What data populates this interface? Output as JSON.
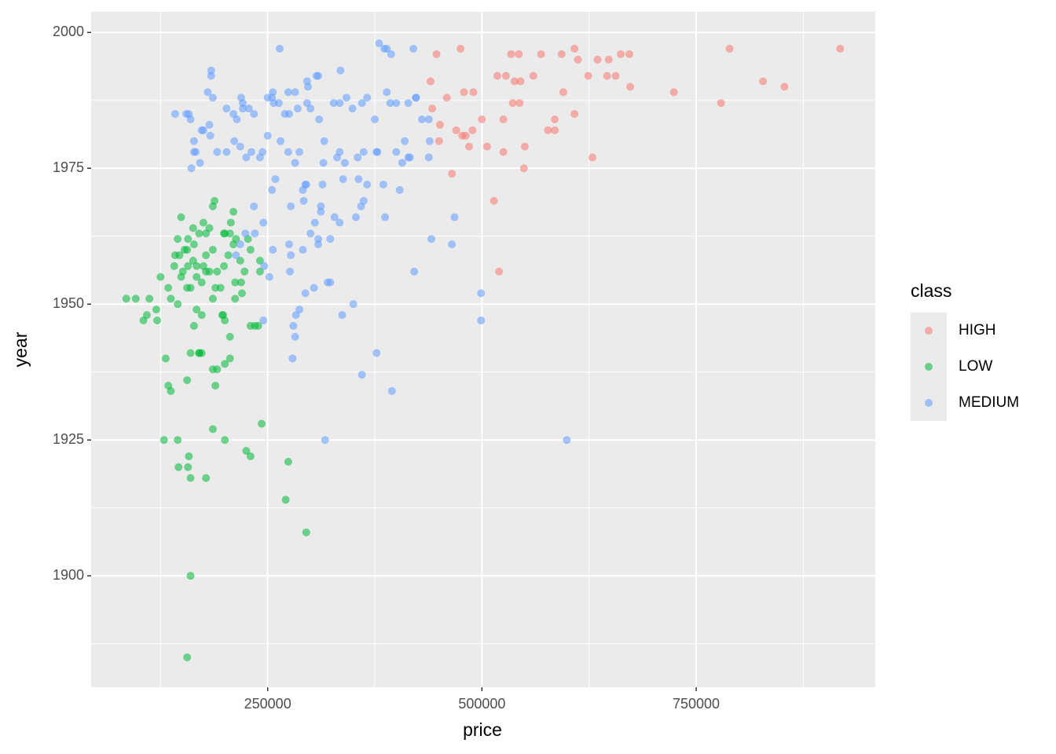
{
  "chart_data": {
    "type": "scatter",
    "x_label": "price",
    "y_label": "year",
    "legend_title": "class",
    "legend": "right",
    "grid": true,
    "opacity": 0.55,
    "xlim": [
      44000,
      959000
    ],
    "ylim": [
      1879.5,
      2003.8
    ],
    "xticks": [
      250000,
      500000,
      750000
    ],
    "yticks": [
      1900,
      1925,
      1950,
      1975,
      2000
    ],
    "series": [
      {
        "name": "HIGH",
        "color": "#F8766D",
        "x": [
          447000,
          475000,
          534000,
          543000,
          569000,
          608000,
          612000,
          635000,
          648000,
          662000,
          672000,
          789000,
          918000,
          828000,
          853000,
          724000,
          779000,
          673000,
          624000,
          646000,
          656000,
          595000,
          560000,
          545000,
          538000,
          528000,
          518000,
          440000,
          459000,
          479000,
          490000,
          442000,
          451000,
          470000,
          477000,
          481000,
          485000,
          489000,
          500000,
          506000,
          525000,
          525000,
          550000,
          577000,
          585000,
          585000,
          608000,
          629000,
          465000,
          549000,
          514000,
          520000,
          450000,
          536000,
          544000,
          593000
        ],
        "y": [
          1996,
          1997,
          1996,
          1996,
          1996,
          1997,
          1995,
          1995,
          1995,
          1996,
          1996,
          1997,
          1997,
          1991,
          1990,
          1989,
          1987,
          1990,
          1992,
          1992,
          1992,
          1989,
          1992,
          1991,
          1991,
          1992,
          1992,
          1991,
          1988,
          1989,
          1989,
          1986,
          1983,
          1982,
          1981,
          1981,
          1979,
          1982,
          1984,
          1979,
          1984,
          1978,
          1979,
          1982,
          1984,
          1982,
          1985,
          1977,
          1974,
          1975,
          1969,
          1956,
          1980,
          1987,
          1987,
          1996
        ]
      },
      {
        "name": "LOW",
        "color": "#00BA38",
        "x": [
          85000,
          96000,
          112000,
          105000,
          121000,
          120000,
          109000,
          125000,
          134000,
          137000,
          141000,
          145000,
          149000,
          153000,
          149000,
          157000,
          160000,
          167000,
          173000,
          164000,
          131000,
          129000,
          137000,
          134000,
          145000,
          146000,
          157000,
          158000,
          160000,
          178000,
          156000,
          160000,
          170000,
          167000,
          170000,
          175000,
          178000,
          186000,
          188000,
          178000,
          182000,
          189000,
          186000,
          197000,
          200000,
          206000,
          206000,
          198000,
          195000,
          199000,
          204000,
          210000,
          206000,
          212000,
          218000,
          223000,
          200000,
          207000,
          210000,
          186000,
          175000,
          164000,
          156000,
          147000,
          151000,
          156000,
          163000,
          167000,
          173000,
          178000,
          191000,
          212000,
          220000,
          241000,
          235000,
          230000,
          239000,
          200000,
          191000,
          186000,
          173000,
          170000,
          189000,
          186000,
          200000,
          225000,
          230000,
          243000,
          274000,
          271000,
          295000,
          160000,
          156000,
          142000,
          145000,
          157000,
          163000,
          182000,
          199000,
          213000,
          230000,
          227000,
          241000,
          219000
        ],
        "y": [
          1951,
          1951,
          1951,
          1947,
          1947,
          1949,
          1948,
          1955,
          1953,
          1951,
          1957,
          1950,
          1955,
          1960,
          1966,
          1957,
          1953,
          1949,
          1948,
          1946,
          1940,
          1925,
          1934,
          1935,
          1925,
          1920,
          1920,
          1922,
          1918,
          1918,
          1936,
          1941,
          1941,
          1957,
          1963,
          1965,
          1963,
          1968,
          1969,
          1959,
          1956,
          1953,
          1951,
          1948,
          1947,
          1944,
          1940,
          1948,
          1953,
          1957,
          1959,
          1961,
          1963,
          1954,
          1958,
          1956,
          1963,
          1965,
          1967,
          1960,
          1957,
          1961,
          1960,
          1959,
          1956,
          1953,
          1958,
          1955,
          1954,
          1956,
          1956,
          1951,
          1952,
          1956,
          1946,
          1946,
          1946,
          1939,
          1938,
          1938,
          1941,
          1941,
          1935,
          1927,
          1925,
          1923,
          1922,
          1928,
          1921,
          1914,
          1908,
          1900,
          1885,
          1959,
          1962,
          1962,
          1964,
          1964,
          1963,
          1962,
          1960,
          1962,
          1958,
          1954
        ]
      },
      {
        "name": "MEDIUM",
        "color": "#619CFF",
        "x": [
          386000,
          380000,
          389000,
          394000,
          420000,
          335000,
          296000,
          307000,
          274000,
          296000,
          285000,
          257000,
          255000,
          275000,
          300000,
          310000,
          327000,
          334000,
          342000,
          360000,
          366000,
          375000,
          389000,
          393000,
          400000,
          414000,
          423000,
          430000,
          400000,
          407000,
          414000,
          416000,
          438000,
          439000,
          438000,
          410000,
          423000,
          362000,
          377000,
          378000,
          355000,
          349000,
          315000,
          338000,
          314000,
          295000,
          291000,
          274000,
          282000,
          250000,
          244000,
          241000,
          231000,
          225000,
          218000,
          211000,
          202000,
          191000,
          182000,
          175000,
          164000,
          161000,
          171000,
          183000,
          202000,
          210000,
          221000,
          228000,
          234000,
          250000,
          263000,
          265000,
          287000,
          316000,
          334000,
          331000,
          340000,
          356000,
          362000,
          359000,
          387000,
          404000,
          468000,
          441000,
          465000,
          421000,
          385000,
          366000,
          353000,
          334000,
          328000,
          312000,
          323000,
          309000,
          300000,
          291000,
          277000,
          276000,
          275000,
          256000,
          246000,
          252000,
          245000,
          235000,
          224000,
          218000,
          213000,
          234000,
          255000,
          259000,
          277000,
          292000,
          294000,
          312000,
          305000,
          309000,
          320000,
          304000,
          294000,
          323000,
          350000,
          337000,
          377000,
          360000,
          395000,
          499000,
          499000,
          599000,
          317000,
          287000,
          280000,
          282000,
          283000,
          279000,
          245000,
          184000,
          184000,
          180000,
          158000,
          155000,
          142000,
          164000,
          166000,
          160000,
          173000,
          186000,
          214000,
          219000,
          221000,
          256000,
          270000,
          282000,
          297000,
          309000,
          264000
        ],
        "y": [
          1997,
          1998,
          1997,
          1996,
          1997,
          1993,
          1991,
          1992,
          1989,
          1987,
          1986,
          1987,
          1988,
          1985,
          1986,
          1984,
          1987,
          1987,
          1988,
          1987,
          1988,
          1984,
          1989,
          1987,
          1987,
          1987,
          1988,
          1984,
          1978,
          1976,
          1977,
          1977,
          1977,
          1980,
          1984,
          1980,
          1988,
          1978,
          1978,
          1978,
          1977,
          1986,
          1976,
          1973,
          1972,
          1972,
          1971,
          1978,
          1976,
          1981,
          1978,
          1977,
          1978,
          1977,
          1979,
          1980,
          1978,
          1978,
          1983,
          1982,
          1978,
          1975,
          1976,
          1981,
          1986,
          1985,
          1987,
          1986,
          1985,
          1988,
          1987,
          1980,
          1978,
          1980,
          1978,
          1977,
          1976,
          1973,
          1969,
          1968,
          1966,
          1971,
          1966,
          1962,
          1961,
          1956,
          1972,
          1972,
          1966,
          1965,
          1966,
          1968,
          1962,
          1962,
          1963,
          1960,
          1959,
          1956,
          1961,
          1960,
          1957,
          1955,
          1965,
          1963,
          1963,
          1961,
          1959,
          1968,
          1971,
          1973,
          1968,
          1969,
          1972,
          1967,
          1965,
          1961,
          1954,
          1953,
          1952,
          1954,
          1950,
          1948,
          1941,
          1937,
          1934,
          1952,
          1947,
          1925,
          1925,
          1949,
          1946,
          1944,
          1948,
          1940,
          1947,
          1993,
          1992,
          1989,
          1985,
          1985,
          1985,
          1980,
          1978,
          1984,
          1982,
          1988,
          1984,
          1988,
          1986,
          1989,
          1985,
          1989,
          1990,
          1992,
          1997
        ]
      }
    ]
  }
}
